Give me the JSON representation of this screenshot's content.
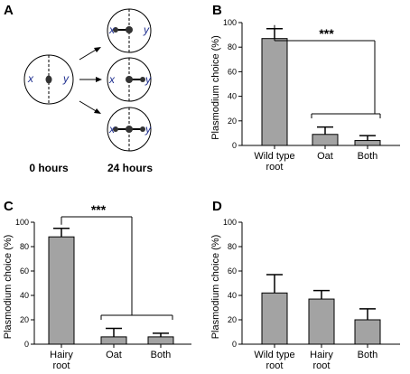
{
  "panel_a": {
    "letter": "A",
    "left_label": "x",
    "right_label": "y",
    "time_start": "0 hours",
    "time_end": "24 hours"
  },
  "chart_data": [
    {
      "panel": "B",
      "type": "bar",
      "categories": [
        [
          "Wild type",
          "root"
        ],
        [
          "Oat"
        ],
        [
          "Both"
        ]
      ],
      "values": [
        87,
        9,
        4
      ],
      "errors": [
        8,
        6,
        4
      ],
      "ylabel": "Plasmodium choice (%)",
      "ylim": [
        0,
        100
      ],
      "yticks": [
        "0",
        "20",
        "40",
        "60",
        "80",
        "100"
      ],
      "significance": "***",
      "bar_color": "#a3a3a3"
    },
    {
      "panel": "C",
      "type": "bar",
      "categories": [
        [
          "Hairy",
          "root"
        ],
        [
          "Oat"
        ],
        [
          "Both"
        ]
      ],
      "values": [
        88,
        6,
        6
      ],
      "errors": [
        7,
        7,
        3
      ],
      "ylabel": "Plasmodium choice (%)",
      "ylim": [
        0,
        100
      ],
      "yticks": [
        "0",
        "20",
        "40",
        "60",
        "80",
        "100"
      ],
      "significance": "***",
      "bar_color": "#a3a3a3"
    },
    {
      "panel": "D",
      "type": "bar",
      "categories": [
        [
          "Wild type",
          "root"
        ],
        [
          "Hairy",
          "root"
        ],
        [
          "Both"
        ]
      ],
      "values": [
        42,
        37,
        20
      ],
      "errors": [
        15,
        7,
        9
      ],
      "ylabel": "Plasmodium choice (%)",
      "ylim": [
        0,
        100
      ],
      "yticks": [
        "0",
        "20",
        "40",
        "60",
        "80",
        "100"
      ],
      "significance": "",
      "bar_color": "#a3a3a3"
    }
  ]
}
